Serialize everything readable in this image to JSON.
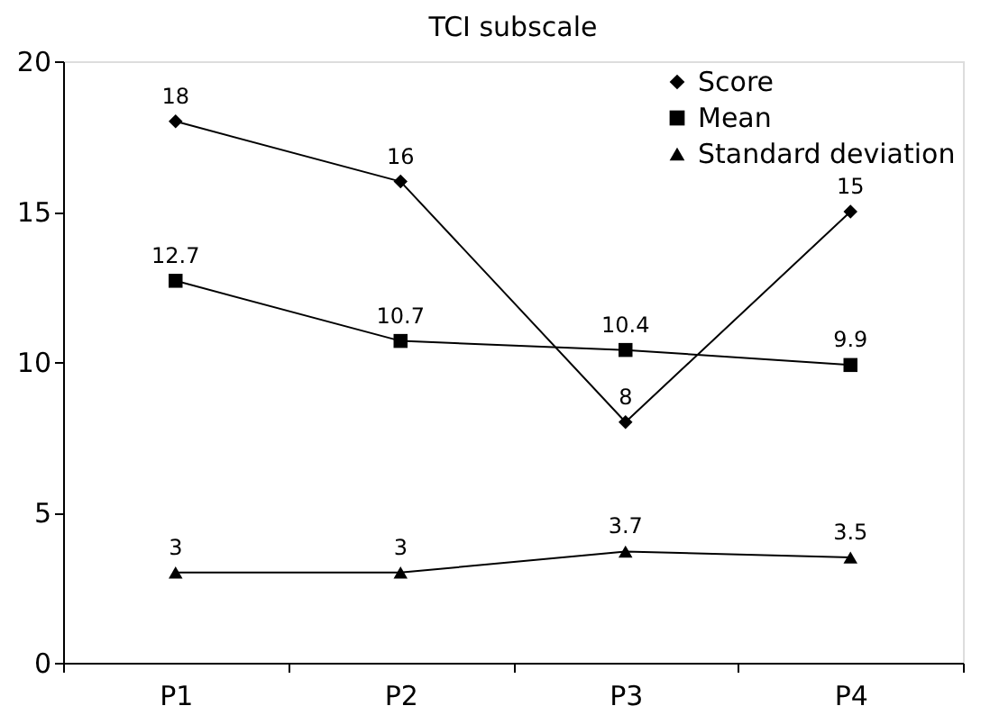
{
  "chart_data": {
    "type": "line",
    "title": "TCI subscale",
    "categories": [
      "P1",
      "P2",
      "P3",
      "P4"
    ],
    "series": [
      {
        "name": "Score",
        "color": "#000000",
        "marker": "diamond",
        "values": [
          18,
          16,
          8,
          15
        ]
      },
      {
        "name": "Mean",
        "color": "#000000",
        "marker": "square",
        "values": [
          12.7,
          10.7,
          10.4,
          9.9
        ]
      },
      {
        "name": "Standard deviation",
        "color": "#000000",
        "marker": "triangle",
        "values": [
          3,
          3,
          3.7,
          3.5
        ]
      }
    ],
    "ylim": [
      0,
      20
    ],
    "yticks": [
      0,
      5,
      10,
      15,
      20
    ],
    "grid": false,
    "legend": "top right",
    "data_labels": true,
    "line_style": "solid"
  }
}
